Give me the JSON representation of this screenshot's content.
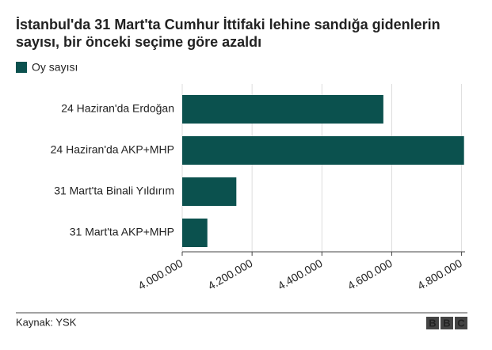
{
  "chart_data": {
    "type": "barh",
    "title": "İstanbul'da 31 Mart'ta Cumhur İttifaki lehine sandığa gidenlerin sayısı, bir önceki seçime göre azaldı",
    "categories": [
      "24 Haziran'da Erdoğan",
      "24 Haziran'da AKP+MHP",
      "31 Mart'ta Binali Yıldırım",
      "31 Mart'ta AKP+MHP"
    ],
    "series": [
      {
        "name": "Oy sayısı",
        "color": "#0b514e",
        "values": [
          4576000,
          4807000,
          4155000,
          4072000
        ]
      }
    ],
    "xlim": [
      4000000,
      4810000
    ],
    "xticks": [
      {
        "value": 4000000,
        "label": "4.000.000"
      },
      {
        "value": 4200000,
        "label": "4.200.000"
      },
      {
        "value": 4400000,
        "label": "4.400.000"
      },
      {
        "value": 4600000,
        "label": "4.600.000"
      },
      {
        "value": 4800000,
        "label": "4.800.000"
      }
    ],
    "grid": true,
    "source": "Kaynak: YSK",
    "logo": [
      "B",
      "B",
      "C"
    ]
  }
}
